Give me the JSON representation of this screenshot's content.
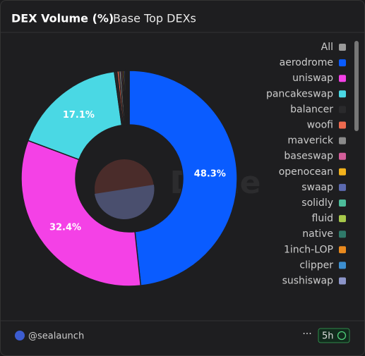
{
  "title": "DEX Volume (%)",
  "subtitle": "Base Top DEXs",
  "watermark": "Dune",
  "author": "@sealaunch",
  "refresh": "5h",
  "chart_data": {
    "type": "pie",
    "donut": true,
    "legend_all": "All",
    "legend_all_color": "#9a9a9a",
    "categories": [
      "aerodrome",
      "uniswap",
      "pancakeswap",
      "balancer",
      "woofi",
      "maverick",
      "baseswap",
      "openocean",
      "swaap",
      "solidly",
      "fluid",
      "native",
      "1inch-LOP",
      "clipper",
      "sushiswap"
    ],
    "values": [
      48.3,
      32.4,
      17.1,
      0.4,
      0.3,
      0.3,
      0.2,
      0.2,
      0.2,
      0.15,
      0.15,
      0.1,
      0.1,
      0.05,
      0.05
    ],
    "value_labels": [
      "48.3%",
      "32.4%",
      "17.1%",
      null,
      null,
      null,
      null,
      null,
      null,
      null,
      null,
      null,
      null,
      null,
      null
    ],
    "colors": [
      "#0a5cff",
      "#f441e6",
      "#4ad8e4",
      "#2a2a2c",
      "#ee6a4f",
      "#8a8a8a",
      "#d35e9a",
      "#f2b21c",
      "#5c6ab0",
      "#4cbc9a",
      "#a8c94a",
      "#2f7a6a",
      "#ea8a1e",
      "#3d8fd0",
      "#8c95c9"
    ],
    "legend_position": "right"
  }
}
